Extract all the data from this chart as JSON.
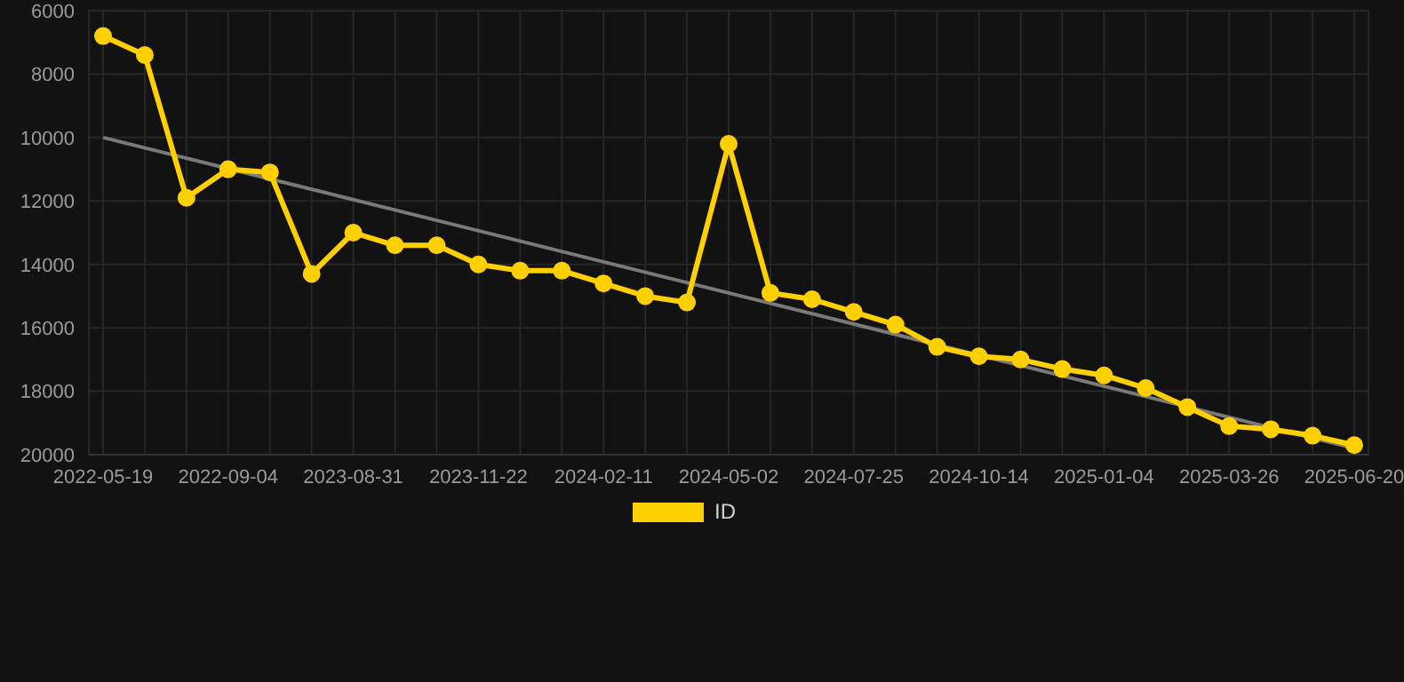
{
  "chart_data": {
    "type": "line",
    "categories": [
      "2022-05-19",
      null,
      null,
      "2022-09-04",
      null,
      null,
      "2023-08-31",
      null,
      null,
      "2023-11-22",
      null,
      null,
      "2024-02-11",
      null,
      null,
      "2024-05-02",
      null,
      null,
      "2024-07-25",
      null,
      null,
      "2024-10-14",
      null,
      null,
      "2025-01-04",
      null,
      null,
      "2025-03-26",
      null,
      null,
      "2025-06-20"
    ],
    "series": [
      {
        "name": "ID",
        "color": "#ffd000",
        "marker": "circle",
        "values": [
          6800,
          7400,
          11900,
          11000,
          11100,
          14300,
          13000,
          13400,
          13400,
          14000,
          14200,
          14200,
          14600,
          15000,
          15200,
          10200,
          14900,
          15100,
          15500,
          15900,
          16600,
          16900,
          17000,
          17300,
          17500,
          17900,
          18500,
          19100,
          19200,
          19400,
          19700
        ]
      },
      {
        "color": "#7a7a7a",
        "marker": "none",
        "values": [
          10000,
          null,
          null,
          null,
          null,
          null,
          null,
          null,
          null,
          null,
          null,
          null,
          null,
          null,
          null,
          null,
          null,
          null,
          null,
          null,
          null,
          null,
          null,
          null,
          null,
          null,
          null,
          null,
          null,
          null,
          19800
        ]
      }
    ],
    "ylim": [
      20000,
      6000
    ],
    "yticks": [
      6000,
      8000,
      10000,
      12000,
      14000,
      16000,
      18000,
      20000
    ],
    "grid": true,
    "legend": "bottom"
  }
}
